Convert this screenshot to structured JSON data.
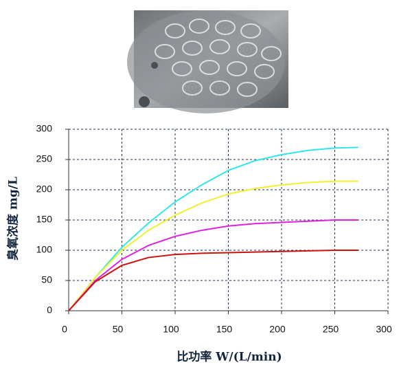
{
  "chart_data": {
    "type": "line",
    "x_label": "比功率  W/(L/min)",
    "y_label": "臭氧浓度  mg/L",
    "x": [
      0,
      25,
      50,
      75,
      100,
      125,
      150,
      175,
      200,
      225,
      250,
      272
    ],
    "series": [
      {
        "color": "#33e6e6",
        "values": [
          0,
          55,
          105,
          145,
          180,
          208,
          232,
          248,
          258,
          265,
          269,
          270
        ]
      },
      {
        "color": "#f0f030",
        "values": [
          0,
          55,
          100,
          133,
          158,
          178,
          193,
          202,
          208,
          212,
          214,
          214
        ]
      },
      {
        "color": "#dd22dd",
        "values": [
          0,
          50,
          85,
          108,
          123,
          133,
          140,
          144,
          146,
          148,
          150,
          150
        ]
      },
      {
        "color": "#cc1111",
        "values": [
          0,
          48,
          75,
          88,
          93,
          95,
          96,
          97,
          98,
          99,
          100,
          100
        ]
      }
    ],
    "xlim": [
      0,
      300
    ],
    "xticks": [
      0,
      50,
      100,
      150,
      200,
      250,
      300
    ],
    "ylim": [
      0,
      300
    ],
    "yticks": [
      0,
      50,
      100,
      150,
      200,
      250,
      300
    ],
    "grid": true
  }
}
